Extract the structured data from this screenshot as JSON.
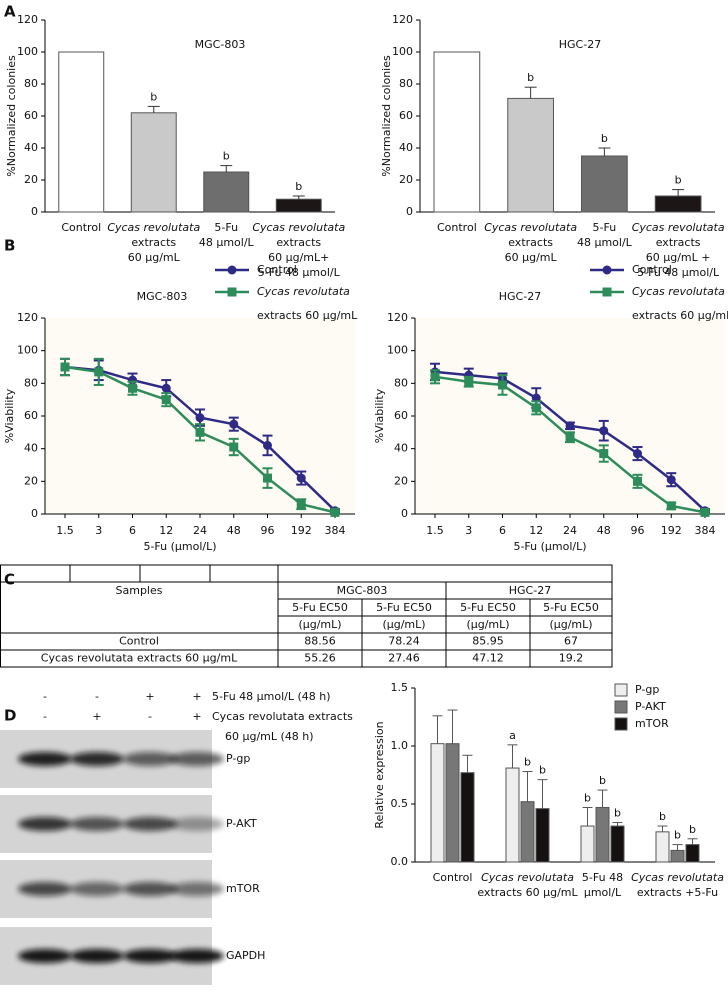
{
  "panel_labels": [
    "A",
    "B",
    "C",
    "D"
  ],
  "chart_data": [
    {
      "type": "bar",
      "title": "MGC-803",
      "ylabel": "%Normalized colonies",
      "categories": [
        [
          "Control"
        ],
        [
          "Cycas revolutata",
          "extracts",
          "60 μg/mL"
        ],
        [
          "5-Fu",
          "48 μmol/L"
        ],
        [
          "Cycas revolutata",
          "extracts",
          "60 μg/mL+",
          "5-Fu 48 μmol/L"
        ]
      ],
      "values": [
        100,
        62,
        25,
        8
      ],
      "errors": [
        null,
        4,
        4,
        2
      ],
      "annotations": [
        null,
        "b",
        "b",
        "b"
      ],
      "colors": [
        "#ffffff",
        "#c8c9c8",
        "#6e6e6e",
        "#1c1616"
      ],
      "ylim": [
        0,
        120
      ],
      "yticks": [
        0,
        20,
        40,
        60,
        80,
        100,
        120
      ]
    },
    {
      "type": "bar",
      "title": "HGC-27",
      "ylabel": "%Normalized colonies",
      "categories": [
        [
          "Control"
        ],
        [
          "Cycas revolutata",
          "extracts",
          "60 μg/mL"
        ],
        [
          "5-Fu",
          "48 μmol/L"
        ],
        [
          "Cycas revolutata",
          "extracts",
          "60 μg/mL +",
          "5-Fu 48 μmol/L"
        ]
      ],
      "values": [
        100,
        71,
        35,
        10
      ],
      "errors": [
        null,
        7,
        5,
        4
      ],
      "annotations": [
        null,
        "b",
        "b",
        "b"
      ],
      "colors": [
        "#ffffff",
        "#c8c9c8",
        "#6e6e6e",
        "#1c1616"
      ],
      "ylim": [
        0,
        120
      ],
      "yticks": [
        0,
        20,
        40,
        60,
        80,
        100,
        120
      ]
    },
    {
      "type": "line",
      "title": "MGC-803",
      "xlabel": "5-Fu (μmol/L)",
      "ylabel": "%Viability",
      "x": [
        "1.5",
        "3",
        "6",
        "12",
        "24",
        "48",
        "96",
        "192",
        "384"
      ],
      "series": [
        {
          "name": "Control",
          "color": "#2f2a86",
          "marker": "circle",
          "values": [
            90,
            88,
            82,
            77,
            59,
            55,
            42,
            22,
            2
          ],
          "errors": [
            5,
            6,
            4,
            5,
            5,
            4,
            6,
            4,
            1
          ]
        },
        {
          "name": "Cycas revolutata extracts 60 μg/mL",
          "color": "#2e8c5a",
          "marker": "square",
          "values": [
            90,
            87,
            77,
            70,
            50,
            41,
            22,
            6,
            1
          ],
          "errors": [
            5,
            8,
            4,
            4,
            5,
            5,
            6,
            3,
            1
          ]
        }
      ],
      "ylim": [
        0,
        120
      ],
      "yticks": [
        0,
        20,
        40,
        60,
        80,
        100,
        120
      ]
    },
    {
      "type": "line",
      "title": "HGC-27",
      "xlabel": "5-Fu (μmol/L)",
      "ylabel": "%Viability",
      "x": [
        "1.5",
        "3",
        "6",
        "12",
        "24",
        "48",
        "96",
        "192",
        "384"
      ],
      "series": [
        {
          "name": "Control",
          "color": "#2f2a86",
          "marker": "circle",
          "values": [
            87,
            85,
            83,
            71,
            54,
            51,
            37,
            21,
            2
          ],
          "errors": [
            5,
            4,
            3,
            6,
            2,
            6,
            4,
            4,
            1
          ]
        },
        {
          "name": "Cycas revolutata extracts 60 μg/mL",
          "color": "#2e8c5a",
          "marker": "square",
          "values": [
            84,
            81,
            79,
            65,
            47,
            37,
            20,
            5,
            1
          ],
          "errors": [
            4,
            3,
            6,
            4,
            3,
            5,
            4,
            2,
            1
          ]
        }
      ],
      "ylim": [
        0,
        120
      ],
      "yticks": [
        0,
        20,
        40,
        60,
        80,
        100,
        120
      ]
    },
    {
      "type": "grouped_bar",
      "ylabel": "Relative expression",
      "categories": [
        [
          "Control"
        ],
        [
          "Cycas revolutata",
          "extracts 60 μg/mL"
        ],
        [
          "5-Fu 48",
          "μmol/L"
        ],
        [
          "Cycas revolutata",
          "extracts +5-Fu"
        ]
      ],
      "series": [
        {
          "name": "P-gp",
          "color": "#eeeeee",
          "values": [
            1.02,
            0.81,
            0.31,
            0.26
          ],
          "errors": [
            0.24,
            0.2,
            0.16,
            0.05
          ],
          "annotations": [
            null,
            "a",
            "b",
            "b"
          ]
        },
        {
          "name": "P-AKT",
          "color": "#777777",
          "values": [
            1.02,
            0.52,
            0.47,
            0.1
          ],
          "errors": [
            0.29,
            0.26,
            0.15,
            0.05
          ],
          "annotations": [
            null,
            "b",
            "b",
            "b"
          ]
        },
        {
          "name": "mTOR",
          "color": "#151111",
          "values": [
            0.77,
            0.46,
            0.31,
            0.15
          ],
          "errors": [
            0.15,
            0.25,
            0.03,
            0.05
          ],
          "annotations": [
            null,
            "b",
            "b",
            "b"
          ]
        }
      ],
      "ylim": [
        0,
        1.5
      ],
      "yticks": [
        {
          "value": 0,
          "label": "0.0"
        },
        {
          "value": 0.5,
          "label": "0.5"
        },
        {
          "value": 1,
          "label": "1.0"
        },
        {
          "value": 1.5,
          "label": "1.5"
        }
      ]
    }
  ],
  "table": {
    "samples": "Samples",
    "groups": [
      "MGC-803",
      "HGC-27"
    ],
    "sub": [
      "5-Fu EC50",
      "5-Fu EC50",
      "5-Fu EC50",
      "5-Fu EC50"
    ],
    "units": [
      "(μg/mL)",
      "(μg/mL)",
      "(μg/mL)",
      "(μg/mL)"
    ],
    "rows": [
      [
        "Control",
        88.56,
        78.24,
        85.95,
        67
      ],
      [
        "Cycas revolutata extracts 60 μg/mL",
        55.26,
        27.46,
        47.12,
        19.2
      ]
    ]
  },
  "blot": {
    "treatments": [
      {
        "label": [
          "5-Fu 48 μmol/L (48 h)"
        ],
        "signs": [
          "-",
          "-",
          "+",
          "+"
        ]
      },
      {
        "label": [
          "Cycas revolutata extracts",
          "60 μg/mL (48 h)"
        ],
        "signs": [
          "-",
          "+",
          "-",
          "+"
        ]
      }
    ],
    "bands": [
      "P-gp",
      "P-AKT",
      "mTOR",
      "GAPDH"
    ]
  }
}
